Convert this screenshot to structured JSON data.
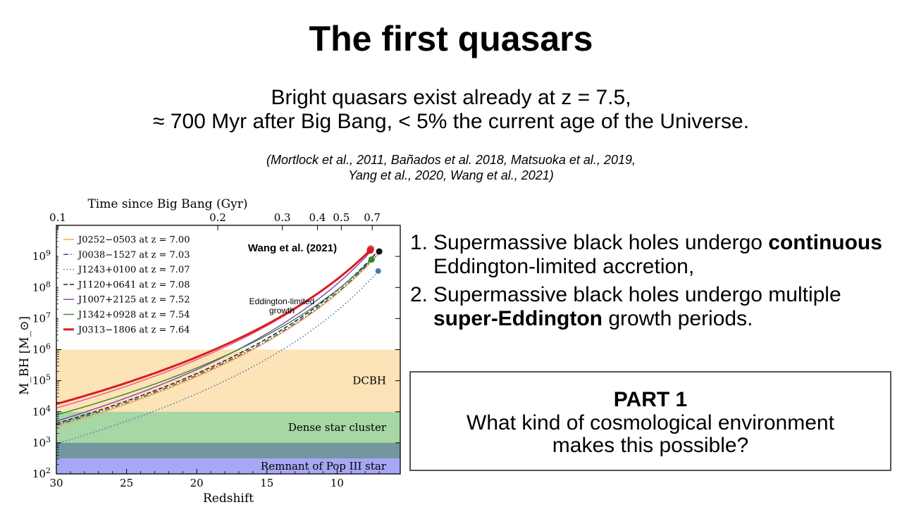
{
  "slide": {
    "title": "The first quasars",
    "subtitle_line1": "Bright quasars exist already at  z = 7.5,",
    "subtitle_line2": "≈ 700 Myr after Big Bang, < 5% the current age of the Universe.",
    "refs_line1": "(Mortlock et al., 2011, Bañados et al. 2018, Matsuoka et al., 2019,",
    "refs_line2": "Yang et al., 2020, Wang et al., 2021)"
  },
  "points": [
    {
      "num": "1.",
      "pre": "Supermassive black holes undergo ",
      "bold": "continuous",
      "post": " Eddington-limited accretion,"
    },
    {
      "num": "2.",
      "pre": "Supermassive black holes undergo multiple ",
      "bold": "super-Eddington",
      "post": " growth periods."
    }
  ],
  "part": {
    "title": "PART 1",
    "question_line1": "What kind of cosmological environment",
    "question_line2": "makes this possible?"
  },
  "chart_data": {
    "type": "line",
    "xlabel": "Redshift",
    "ylabel": "M_BH [M_⊙]",
    "top_xlabel": "Time since Big Bang (Gyr)",
    "xlim": [
      30,
      5.5
    ],
    "ylim_log10": [
      2,
      10
    ],
    "y_scale": "log",
    "xticks": [
      30,
      25,
      20,
      15,
      10
    ],
    "xtick_labels": [
      "30",
      "25",
      "20",
      "15",
      "10"
    ],
    "top_ticks": [
      {
        "label": "0.1",
        "z": 29.9
      },
      {
        "label": "0.2",
        "z": 18.5
      },
      {
        "label": "0.3",
        "z": 13.9
      },
      {
        "label": "0.4",
        "z": 11.4
      },
      {
        "label": "0.5",
        "z": 9.7
      },
      {
        "label": "0.7",
        "z": 7.5
      }
    ],
    "annotation_source": "Wang et al. (2021)",
    "annotation_growth_line1": "Eddington-limited",
    "annotation_growth_line2": "growth",
    "regions": [
      {
        "name": "DCBH",
        "y_from_log10": 4,
        "y_to_log10": 6,
        "color": "#fde3b8"
      },
      {
        "name": "Dense star cluster",
        "y_from_log10": 3,
        "y_to_log10": 4,
        "color": "#a6d7a4"
      },
      {
        "name": "Remnant of Pop III star",
        "y_from_log10": 2,
        "y_to_log10": 3,
        "color": "#a7a8f3"
      }
    ],
    "series": [
      {
        "name": "J0252−0503",
        "z_label": "7.00",
        "color": "#f0a93c",
        "dash": "solid",
        "width": 1.4,
        "z_end": 7.0,
        "log_end": 9.11,
        "log_at_30": 3.52
      },
      {
        "name": "J0038−1527",
        "z_label": "7.03",
        "color": "#3a3aa6",
        "dash": "dashdot",
        "width": 1.4,
        "z_end": 7.03,
        "log_end": 9.13,
        "log_at_30": 3.57
      },
      {
        "name": "J1243+0100",
        "z_label": "7.07",
        "color": "#4a78b0",
        "dash": "dotted",
        "width": 1.6,
        "z_end": 7.07,
        "log_end": 8.53,
        "log_at_30": 2.97
      },
      {
        "name": "J1120+0641",
        "z_label": "7.08",
        "color": "#111111",
        "dash": "dashed",
        "width": 1.4,
        "z_end": 7.08,
        "log_end": 9.18,
        "log_at_30": 3.62
      },
      {
        "name": "J1007+2125",
        "z_label": "7.52",
        "color": "#8a3fb0",
        "dash": "solid",
        "width": 1.4,
        "z_end": 7.52,
        "log_end": 9.2,
        "log_at_30": 3.7
      },
      {
        "name": "J1342+0928",
        "z_label": "7.54",
        "color": "#2e8b2e",
        "dash": "solid",
        "width": 1.4,
        "z_end": 7.54,
        "log_end": 8.9,
        "log_at_30": 3.9
      },
      {
        "name": "J0313−1806",
        "z_label": "7.64",
        "color": "#d61e1e",
        "dash": "solid",
        "width": 3,
        "z_end": 7.64,
        "log_end": 9.2,
        "log_at_30": 4.25
      }
    ],
    "extra_curve": {
      "color": "#e85a8e",
      "width": 1.4,
      "z_end": 7.6,
      "log_end": 9.25,
      "log_at_30": 4.12
    },
    "grid": false,
    "legend_position": "top-left"
  }
}
